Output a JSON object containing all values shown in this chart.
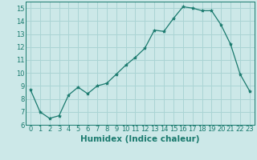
{
  "x": [
    0,
    1,
    2,
    3,
    4,
    5,
    6,
    7,
    8,
    9,
    10,
    11,
    12,
    13,
    14,
    15,
    16,
    17,
    18,
    19,
    20,
    21,
    22,
    23
  ],
  "y": [
    8.7,
    7.0,
    6.5,
    6.7,
    8.3,
    8.9,
    8.4,
    9.0,
    9.2,
    9.9,
    10.6,
    11.2,
    11.9,
    13.3,
    13.2,
    14.2,
    15.1,
    15.0,
    14.8,
    14.8,
    13.7,
    12.2,
    9.9,
    8.6
  ],
  "line_color": "#1a7a6e",
  "marker": "*",
  "marker_size": 3,
  "bg_color": "#cce8e8",
  "grid_color": "#aad4d4",
  "xlabel": "Humidex (Indice chaleur)",
  "xlim": [
    -0.5,
    23.5
  ],
  "ylim": [
    6,
    15.5
  ],
  "yticks": [
    6,
    7,
    8,
    9,
    10,
    11,
    12,
    13,
    14,
    15
  ],
  "xticks": [
    0,
    1,
    2,
    3,
    4,
    5,
    6,
    7,
    8,
    9,
    10,
    11,
    12,
    13,
    14,
    15,
    16,
    17,
    18,
    19,
    20,
    21,
    22,
    23
  ],
  "tick_fontsize": 6,
  "xlabel_fontsize": 7.5
}
